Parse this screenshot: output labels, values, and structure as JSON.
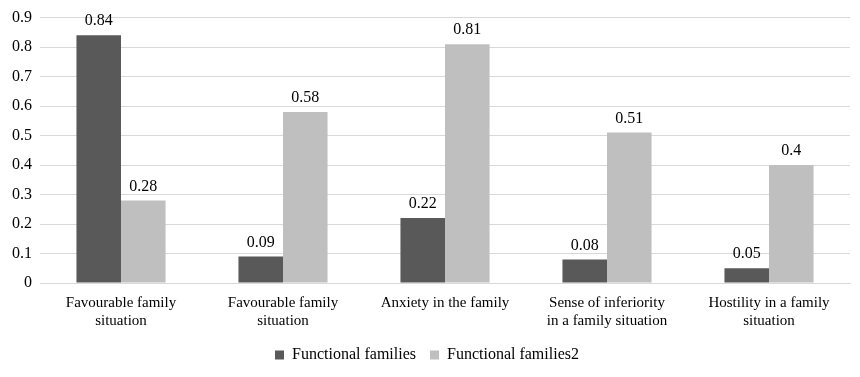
{
  "chart_data": {
    "type": "bar",
    "categories": [
      "Favourable family situation",
      "Favourable family situation",
      "Anxiety in the family",
      "Sense of inferiority in a family situation",
      "Hostility in a family situation"
    ],
    "series": [
      {
        "name": "Functional families",
        "color": "#595959",
        "values": [
          0.84,
          0.09,
          0.22,
          0.08,
          0.05
        ]
      },
      {
        "name": "Functional families2",
        "color": "#bfbfbf",
        "values": [
          0.28,
          0.58,
          0.81,
          0.51,
          0.4
        ]
      }
    ],
    "ylim": [
      0,
      0.9
    ],
    "yticks": [
      0,
      0.1,
      0.2,
      0.3,
      0.4,
      0.5,
      0.6,
      0.7,
      0.8,
      0.9
    ],
    "grid": true,
    "legend": "bottom",
    "data_labels": true
  }
}
